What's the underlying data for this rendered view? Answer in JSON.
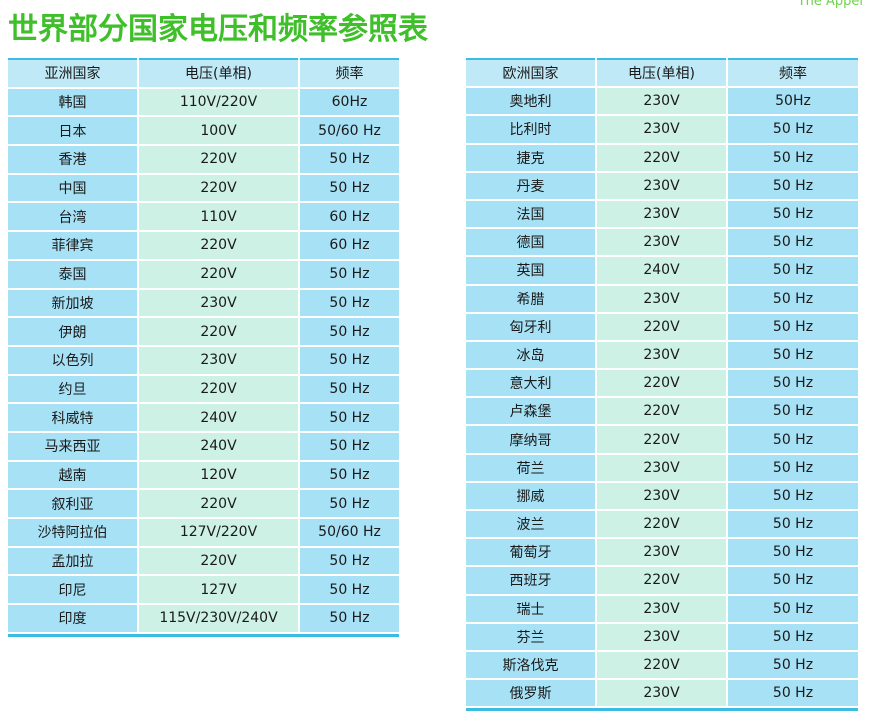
{
  "corner_text": "The Appel",
  "title": "世界部分国家电压和频率参照表",
  "asia": {
    "headers": [
      "亚洲国家",
      "电压(单相)",
      "频率"
    ],
    "rows": [
      [
        "韩国",
        "110V/220V",
        "60Hz"
      ],
      [
        "日本",
        "100V",
        "50/60 Hz"
      ],
      [
        "香港",
        "220V",
        "50 Hz"
      ],
      [
        "中国",
        "220V",
        "50 Hz"
      ],
      [
        "台湾",
        "110V",
        "60 Hz"
      ],
      [
        "菲律宾",
        "220V",
        "60 Hz"
      ],
      [
        "泰国",
        "220V",
        "50 Hz"
      ],
      [
        "新加坡",
        "230V",
        "50 Hz"
      ],
      [
        "伊朗",
        "220V",
        "50 Hz"
      ],
      [
        "以色列",
        "230V",
        "50 Hz"
      ],
      [
        "约旦",
        "220V",
        "50 Hz"
      ],
      [
        "科威特",
        "240V",
        "50 Hz"
      ],
      [
        "马来西亚",
        "240V",
        "50 Hz"
      ],
      [
        "越南",
        "120V",
        "50 Hz"
      ],
      [
        "叙利亚",
        "220V",
        "50 Hz"
      ],
      [
        "沙特阿拉伯",
        "127V/220V",
        "50/60 Hz"
      ],
      [
        "孟加拉",
        "220V",
        "50 Hz"
      ],
      [
        "印尼",
        "127V",
        "50 Hz"
      ],
      [
        "印度",
        "115V/230V/240V",
        "50 Hz"
      ]
    ]
  },
  "europe": {
    "headers": [
      "欧洲国家",
      "电压(单相)",
      "频率"
    ],
    "rows": [
      [
        "奥地利",
        "230V",
        "50Hz"
      ],
      [
        "比利时",
        "230V",
        "50 Hz"
      ],
      [
        "捷克",
        "220V",
        "50 Hz"
      ],
      [
        "丹麦",
        "230V",
        "50 Hz"
      ],
      [
        "法国",
        "230V",
        "50 Hz"
      ],
      [
        "德国",
        "230V",
        "50 Hz"
      ],
      [
        "英国",
        "240V",
        "50 Hz"
      ],
      [
        "希腊",
        "230V",
        "50 Hz"
      ],
      [
        "匈牙利",
        "220V",
        "50 Hz"
      ],
      [
        "冰岛",
        "230V",
        "50 Hz"
      ],
      [
        "意大利",
        "220V",
        "50 Hz"
      ],
      [
        "卢森堡",
        "220V",
        "50 Hz"
      ],
      [
        "摩纳哥",
        "220V",
        "50 Hz"
      ],
      [
        "荷兰",
        "230V",
        "50 Hz"
      ],
      [
        "挪威",
        "230V",
        "50 Hz"
      ],
      [
        "波兰",
        "220V",
        "50 Hz"
      ],
      [
        "葡萄牙",
        "230V",
        "50 Hz"
      ],
      [
        "西班牙",
        "220V",
        "50 Hz"
      ],
      [
        "瑞士",
        "230V",
        "50 Hz"
      ],
      [
        "芬兰",
        "230V",
        "50 Hz"
      ],
      [
        "斯洛伐克",
        "220V",
        "50 Hz"
      ],
      [
        "俄罗斯",
        "230V",
        "50 Hz"
      ]
    ]
  }
}
